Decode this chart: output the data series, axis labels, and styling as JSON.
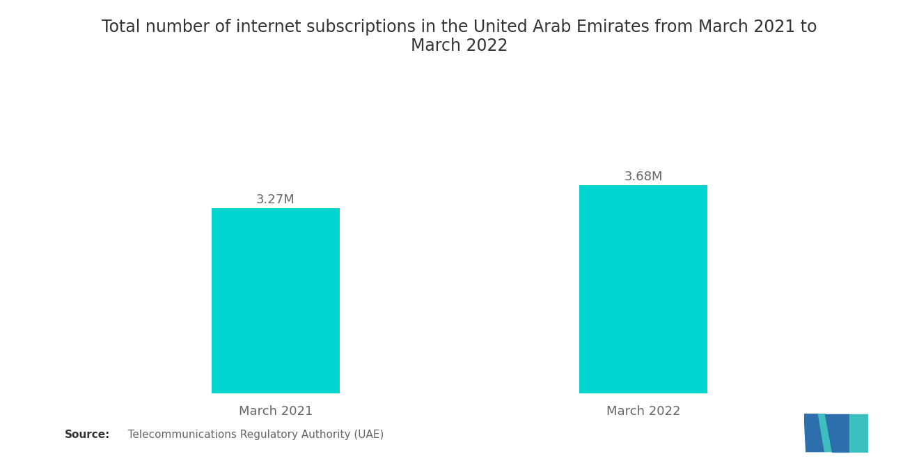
{
  "title": "Total number of internet subscriptions in the United Arab Emirates from March 2021 to\nMarch 2022",
  "categories": [
    "March 2021",
    "March 2022"
  ],
  "values": [
    3.27,
    3.68
  ],
  "value_labels": [
    "3.27M",
    "3.68M"
  ],
  "bar_color": "#00D4CF",
  "background_color": "#ffffff",
  "title_fontsize": 17,
  "label_fontsize": 13,
  "value_fontsize": 13,
  "source_bold": "Source:",
  "source_rest": "   Telecommunications Regulatory Authority (UAE)",
  "ylim": [
    0,
    4.5
  ],
  "bar_width": 0.35,
  "x_positions": [
    1,
    2
  ],
  "xlim": [
    0.45,
    2.55
  ]
}
